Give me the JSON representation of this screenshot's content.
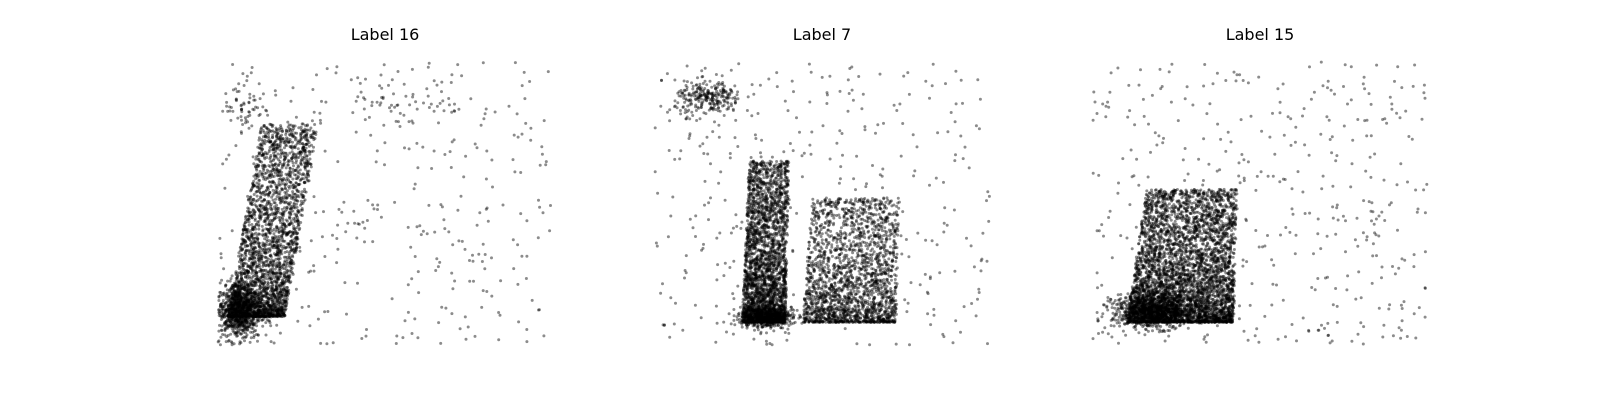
{
  "figure": {
    "background": "#ffffff",
    "point_color": "#000000",
    "point_opacity": 0.45
  },
  "chart_data": [
    {
      "type": "scatter",
      "title": "Label 16",
      "xlabel": "",
      "ylabel": "",
      "axes_visible": false,
      "grid": false,
      "xlim": [
        0,
        1
      ],
      "ylim": [
        0,
        1
      ],
      "clusters": [
        {
          "kind": "uniform",
          "n": 340,
          "x": [
            0.0,
            1.0
          ],
          "y": [
            0.0,
            1.0
          ]
        },
        {
          "kind": "band",
          "n": 2600,
          "x_left": [
            0.03,
            0.13
          ],
          "x_right": [
            0.2,
            0.3
          ],
          "y": [
            0.1,
            0.78
          ]
        },
        {
          "kind": "gauss",
          "n": 900,
          "cx": 0.06,
          "cy": 0.12,
          "sx": 0.035,
          "sy": 0.05
        },
        {
          "kind": "gauss",
          "n": 60,
          "cx": 0.08,
          "cy": 0.85,
          "sx": 0.03,
          "sy": 0.05
        },
        {
          "kind": "gauss",
          "n": 40,
          "cx": 0.55,
          "cy": 0.85,
          "sx": 0.09,
          "sy": 0.05
        }
      ]
    },
    {
      "type": "scatter",
      "title": "Label 7",
      "xlabel": "",
      "ylabel": "",
      "axes_visible": false,
      "grid": false,
      "xlim": [
        0,
        1
      ],
      "ylim": [
        0,
        1
      ],
      "clusters": [
        {
          "kind": "uniform",
          "n": 360,
          "x": [
            0.0,
            1.0
          ],
          "y": [
            0.0,
            1.0
          ]
        },
        {
          "kind": "gauss",
          "n": 260,
          "cx": 0.16,
          "cy": 0.87,
          "sx": 0.05,
          "sy": 0.03
        },
        {
          "kind": "band",
          "n": 2600,
          "x_left": [
            0.26,
            0.28
          ],
          "x_right": [
            0.39,
            0.4
          ],
          "y": [
            0.08,
            0.65
          ]
        },
        {
          "kind": "band",
          "n": 2000,
          "x_left": [
            0.44,
            0.47
          ],
          "x_right": [
            0.72,
            0.73
          ],
          "y": [
            0.08,
            0.52
          ]
        },
        {
          "kind": "gauss",
          "n": 500,
          "cx": 0.33,
          "cy": 0.1,
          "sx": 0.04,
          "sy": 0.02
        }
      ]
    },
    {
      "type": "scatter",
      "title": "Label 15",
      "xlabel": "",
      "ylabel": "",
      "axes_visible": false,
      "grid": false,
      "xlim": [
        0,
        1
      ],
      "ylim": [
        0,
        1
      ],
      "clusters": [
        {
          "kind": "uniform",
          "n": 420,
          "x": [
            0.0,
            1.0
          ],
          "y": [
            0.0,
            1.0
          ]
        },
        {
          "kind": "band",
          "n": 4200,
          "x_left": [
            0.1,
            0.16
          ],
          "x_right": [
            0.42,
            0.43
          ],
          "y": [
            0.08,
            0.55
          ]
        },
        {
          "kind": "gauss",
          "n": 900,
          "cx": 0.18,
          "cy": 0.12,
          "sx": 0.06,
          "sy": 0.03
        }
      ]
    }
  ]
}
